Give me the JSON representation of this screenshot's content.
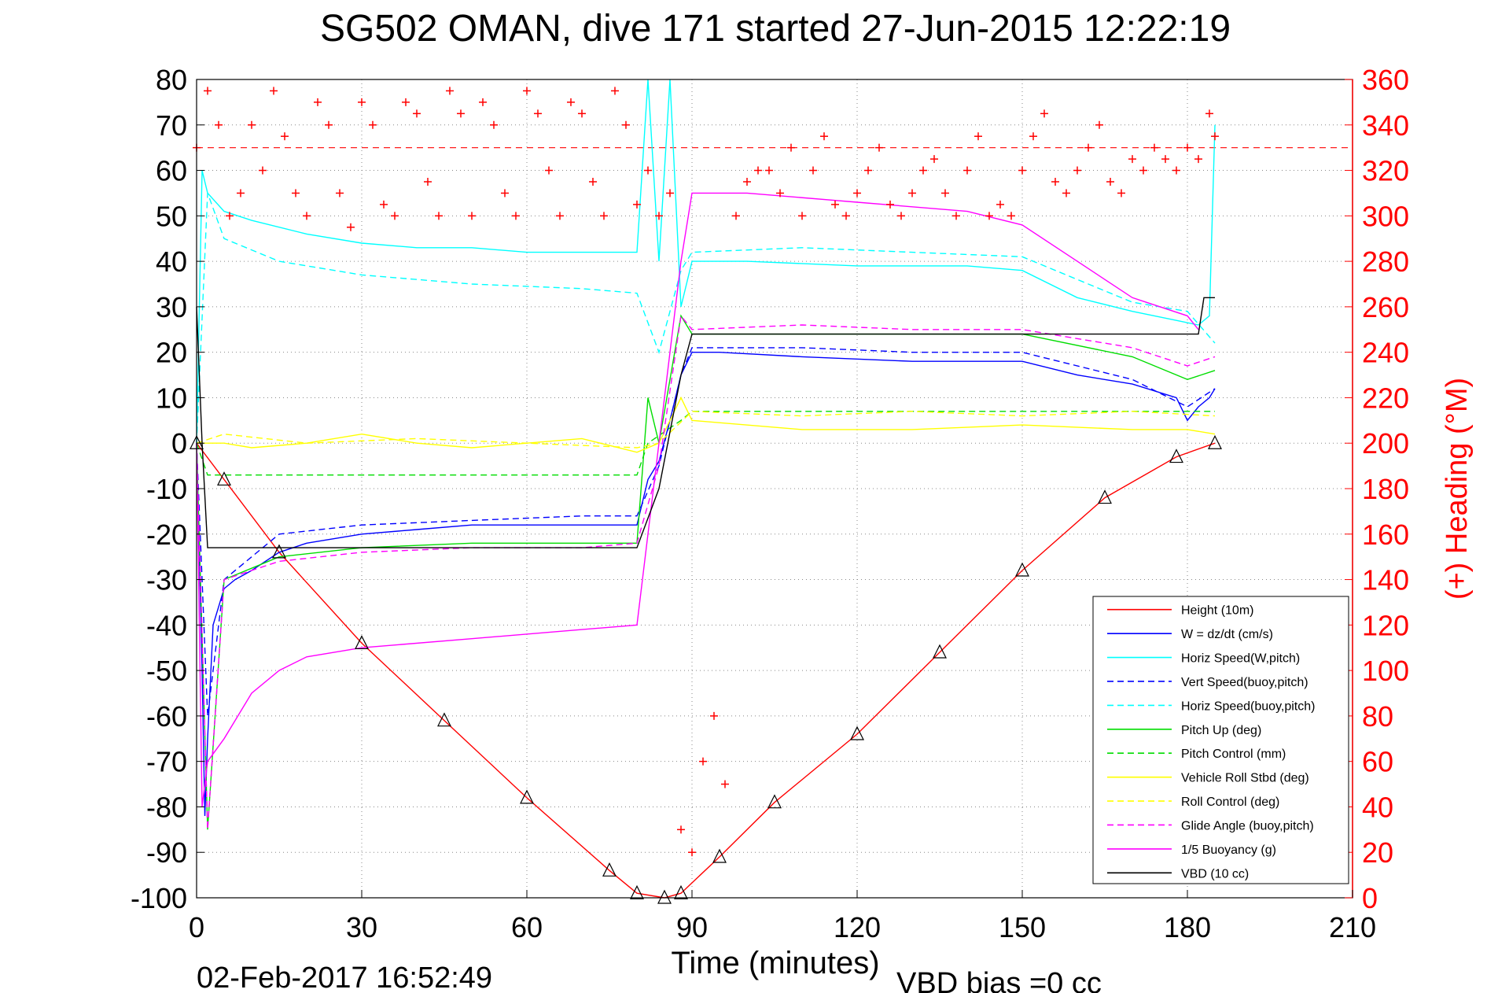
{
  "chart_data": {
    "type": "line",
    "title": "SG502 OMAN, dive 171 started 27-Jun-2015 12:22:19",
    "xlabel": "Time (minutes)",
    "ylabel_right": "(+) Heading (°M)",
    "footer_date": "02-Feb-2017 16:52:49",
    "footer_vbd": "VBD bias =0 cc",
    "xlim": [
      0,
      210
    ],
    "ylim_left": [
      -100,
      80
    ],
    "ylim_right": [
      0,
      360
    ],
    "x_ticks": [
      "0",
      "30",
      "60",
      "90",
      "120",
      "150",
      "180",
      "210"
    ],
    "y_left_ticks": [
      "80",
      "70",
      "60",
      "50",
      "40",
      "30",
      "20",
      "10",
      "0",
      "-10",
      "-20",
      "-30",
      "-40",
      "-50",
      "-60",
      "-70",
      "-80",
      "-90",
      "-100"
    ],
    "y_right_ticks": [
      "360",
      "340",
      "320",
      "300",
      "280",
      "260",
      "240",
      "220",
      "200",
      "180",
      "160",
      "140",
      "120",
      "100",
      "80",
      "60",
      "40",
      "20",
      "0"
    ],
    "grid": true,
    "legend_position": "bottom-right",
    "series": [
      {
        "name": "Height (10m)",
        "color": "#ff0000",
        "style": "solid",
        "x": [
          0,
          5,
          15,
          30,
          45,
          60,
          75,
          80,
          85,
          88,
          95,
          105,
          120,
          135,
          150,
          165,
          178,
          185
        ],
        "y": [
          0,
          -8,
          -24,
          -44,
          -61,
          -78,
          -94,
          -99,
          -100,
          -99,
          -91,
          -79,
          -64,
          -46,
          -28,
          -12,
          -3,
          0
        ]
      },
      {
        "name": "W = dz/dt (cm/s)",
        "color": "#0000ff",
        "style": "solid",
        "x": [
          0,
          1,
          1.5,
          2,
          3,
          5,
          7,
          10,
          15,
          20,
          30,
          40,
          50,
          60,
          70,
          80,
          82,
          84,
          86,
          88,
          90,
          95,
          110,
          130,
          150,
          160,
          170,
          178,
          180,
          182,
          184,
          185
        ],
        "y": [
          0,
          -50,
          -82,
          -65,
          -40,
          -32,
          -30,
          -28,
          -24,
          -22,
          -20,
          -19,
          -18,
          -18,
          -18,
          -18,
          -8,
          -4,
          5,
          15,
          20,
          20,
          19,
          18,
          18,
          15,
          13,
          10,
          5,
          8,
          10,
          12
        ]
      },
      {
        "name": "Horiz Speed(W,pitch)",
        "color": "#00ffff",
        "style": "solid",
        "x": [
          0,
          1,
          2,
          5,
          10,
          20,
          30,
          40,
          50,
          60,
          70,
          80,
          82,
          84,
          86,
          88,
          90,
          100,
          120,
          140,
          150,
          160,
          170,
          178,
          182,
          184,
          185
        ],
        "y": [
          0,
          60,
          55,
          51,
          49,
          46,
          44,
          43,
          43,
          42,
          42,
          42,
          80,
          40,
          80,
          30,
          40,
          40,
          39,
          39,
          38,
          32,
          29,
          27,
          26,
          28,
          70
        ]
      },
      {
        "name": "Vert Speed(buoy,pitch)",
        "color": "#0000ff",
        "style": "dashed",
        "x": [
          0,
          2,
          5,
          15,
          30,
          50,
          70,
          80,
          84,
          88,
          90,
          110,
          130,
          150,
          170,
          180,
          185
        ],
        "y": [
          0,
          -60,
          -30,
          -20,
          -18,
          -17,
          -16,
          -16,
          -5,
          15,
          21,
          21,
          20,
          20,
          14,
          8,
          12
        ]
      },
      {
        "name": "Horiz Speed(buoy,pitch)",
        "color": "#00ffff",
        "style": "dashed",
        "x": [
          0,
          2,
          5,
          15,
          30,
          50,
          70,
          80,
          84,
          88,
          90,
          110,
          130,
          150,
          170,
          180,
          185
        ],
        "y": [
          0,
          55,
          45,
          40,
          37,
          35,
          34,
          33,
          20,
          38,
          42,
          43,
          42,
          41,
          31,
          29,
          22
        ]
      },
      {
        "name": "Pitch Up (deg)",
        "color": "#00dd00",
        "style": "solid",
        "x": [
          0,
          2,
          5,
          15,
          30,
          50,
          70,
          80,
          82,
          84,
          88,
          90,
          110,
          130,
          150,
          170,
          180,
          185
        ],
        "y": [
          0,
          -85,
          -30,
          -25,
          -23,
          -22,
          -22,
          -22,
          10,
          0,
          28,
          24,
          24,
          24,
          24,
          19,
          14,
          16
        ]
      },
      {
        "name": "Pitch Control (mm)",
        "color": "#00dd00",
        "style": "dashed",
        "x": [
          0,
          2,
          5,
          80,
          82,
          88,
          90,
          185
        ],
        "y": [
          0,
          -7,
          -7,
          -7,
          0,
          5,
          7,
          7
        ]
      },
      {
        "name": "Vehicle Roll Stbd (deg)",
        "color": "#ffff00",
        "style": "solid",
        "x": [
          0,
          5,
          10,
          20,
          30,
          40,
          50,
          60,
          70,
          80,
          84,
          88,
          90,
          110,
          130,
          150,
          170,
          180,
          185
        ],
        "y": [
          0,
          0,
          -1,
          0,
          2,
          0,
          -1,
          0,
          1,
          -2,
          0,
          10,
          5,
          3,
          3,
          4,
          3,
          3,
          2
        ]
      },
      {
        "name": "Roll Control (deg)",
        "color": "#ffff00",
        "style": "dashed",
        "x": [
          0,
          5,
          20,
          40,
          60,
          80,
          84,
          90,
          110,
          130,
          150,
          170,
          185
        ],
        "y": [
          0,
          2,
          0,
          1,
          0,
          -1,
          0,
          7,
          6,
          7,
          6,
          7,
          6
        ]
      },
      {
        "name": "Glide Angle (buoy,pitch)",
        "color": "#ff00ff",
        "style": "dashed",
        "x": [
          0,
          2,
          5,
          15,
          30,
          50,
          70,
          80,
          84,
          88,
          90,
          110,
          130,
          150,
          170,
          180,
          185
        ],
        "y": [
          0,
          -85,
          -30,
          -26,
          -24,
          -23,
          -23,
          -22,
          -5,
          28,
          25,
          26,
          25,
          25,
          21,
          17,
          19
        ]
      },
      {
        "name": "1/5 Buoyancy (g)",
        "color": "#ff00ff",
        "style": "solid",
        "x": [
          0,
          1,
          2,
          5,
          10,
          15,
          20,
          30,
          50,
          70,
          80,
          84,
          88,
          90,
          100,
          120,
          140,
          150,
          160,
          170,
          180,
          182
        ],
        "y": [
          0,
          -80,
          -70,
          -65,
          -55,
          -50,
          -47,
          -45,
          -43,
          -41,
          -40,
          0,
          40,
          55,
          55,
          53,
          51,
          48,
          40,
          32,
          28,
          25
        ]
      },
      {
        "name": "VBD (10 cc)",
        "color": "#000000",
        "style": "solid",
        "x": [
          0,
          1,
          2,
          80,
          84,
          88,
          90,
          182,
          183,
          185
        ],
        "y": [
          30,
          0,
          -23,
          -23,
          -10,
          15,
          24,
          24,
          32,
          32
        ]
      }
    ],
    "heading_series": {
      "name": "(+) Heading",
      "color": "#ff0000",
      "marker": "+",
      "axis": "right",
      "x": [
        0,
        2,
        4,
        6,
        8,
        10,
        12,
        14,
        16,
        18,
        20,
        22,
        24,
        26,
        28,
        30,
        32,
        34,
        36,
        38,
        40,
        42,
        44,
        46,
        48,
        50,
        52,
        54,
        56,
        58,
        60,
        62,
        64,
        66,
        68,
        70,
        72,
        74,
        76,
        78,
        80,
        82,
        84,
        86,
        88,
        90,
        92,
        94,
        96,
        98,
        100,
        102,
        104,
        106,
        108,
        110,
        112,
        114,
        116,
        118,
        120,
        122,
        124,
        126,
        128,
        130,
        132,
        134,
        136,
        138,
        140,
        142,
        144,
        146,
        148,
        150,
        152,
        154,
        156,
        158,
        160,
        162,
        164,
        166,
        168,
        170,
        172,
        174,
        176,
        178,
        180,
        182,
        184,
        185
      ],
      "y": [
        330,
        355,
        340,
        300,
        310,
        340,
        320,
        355,
        335,
        310,
        300,
        350,
        340,
        310,
        295,
        350,
        340,
        305,
        300,
        350,
        345,
        315,
        300,
        355,
        345,
        300,
        350,
        340,
        310,
        300,
        355,
        345,
        320,
        300,
        350,
        345,
        315,
        300,
        355,
        340,
        305,
        320,
        300,
        310,
        30,
        20,
        60,
        80,
        50,
        300,
        315,
        320,
        320,
        310,
        330,
        300,
        320,
        335,
        305,
        300,
        310,
        320,
        330,
        305,
        300,
        310,
        320,
        325,
        310,
        300,
        320,
        335,
        300,
        305,
        300,
        320,
        335,
        345,
        315,
        310,
        320,
        330,
        340,
        315,
        310,
        325,
        320,
        330,
        325,
        320,
        330,
        325,
        345,
        335
      ]
    },
    "reference_line": {
      "y_right": 330,
      "color": "#ff0000",
      "style": "dashed"
    }
  }
}
